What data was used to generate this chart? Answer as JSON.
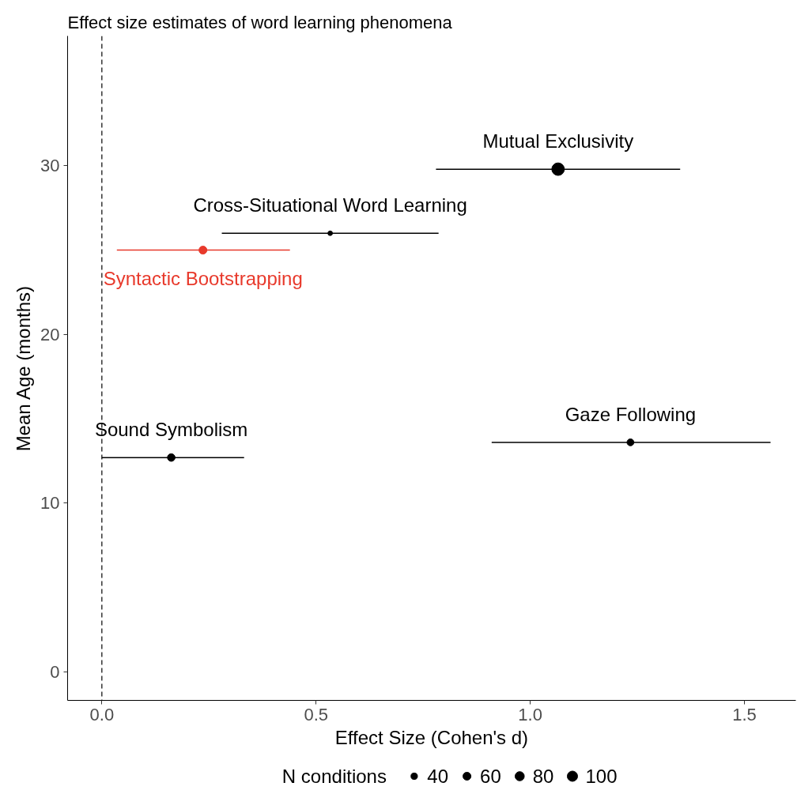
{
  "chart_data": {
    "type": "bubble",
    "title": "Effect size estimates of word learning phenomena",
    "xlabel": "Effect Size (Cohen's d)",
    "ylabel": "Mean Age (months)",
    "legend_title": "N conditions",
    "xlim": [
      -0.08,
      1.62
    ],
    "ylim": [
      -1.7,
      37.7
    ],
    "xticks": [
      {
        "value": 0,
        "label": "0.0"
      },
      0.5,
      {
        "value": 1,
        "label": "1.0"
      },
      1.5
    ],
    "yticks": [
      0,
      10,
      20,
      30
    ],
    "grid": false,
    "size_legend": [
      40,
      60,
      80,
      100
    ],
    "ref_lines": [
      {
        "axis": "x",
        "value": 0,
        "line_style": "dashed",
        "color": "#000000"
      }
    ],
    "series": [
      {
        "name": "Mutual Exclusivity",
        "color": "#000000",
        "x": [
          1.065
        ],
        "values": [
          29.8
        ],
        "xerrors": [
          [
            0.78,
            1.35
          ]
        ],
        "sizes": [
          150
        ]
      },
      {
        "name": "Cross-Situational Word Learning",
        "color": "#000000",
        "x": [
          0.533
        ],
        "values": [
          26.0
        ],
        "xerrors": [
          [
            0.28,
            0.786
          ]
        ],
        "sizes": [
          20
        ]
      },
      {
        "name": "Syntactic Bootstrapping",
        "color": "#e8392b",
        "x": [
          0.236
        ],
        "values": [
          25.0
        ],
        "xerrors": [
          [
            0.035,
            0.439
          ]
        ],
        "sizes": [
          60
        ]
      },
      {
        "name": "Sound Symbolism",
        "color": "#000000",
        "x": [
          0.162
        ],
        "values": [
          12.7
        ],
        "xerrors": [
          [
            0.0,
            0.332
          ]
        ],
        "sizes": [
          55
        ]
      },
      {
        "name": "Gaze Following",
        "color": "#000000",
        "x": [
          1.234
        ],
        "values": [
          13.6
        ],
        "xerrors": [
          [
            0.91,
            1.561
          ]
        ],
        "sizes": [
          45
        ]
      }
    ]
  }
}
